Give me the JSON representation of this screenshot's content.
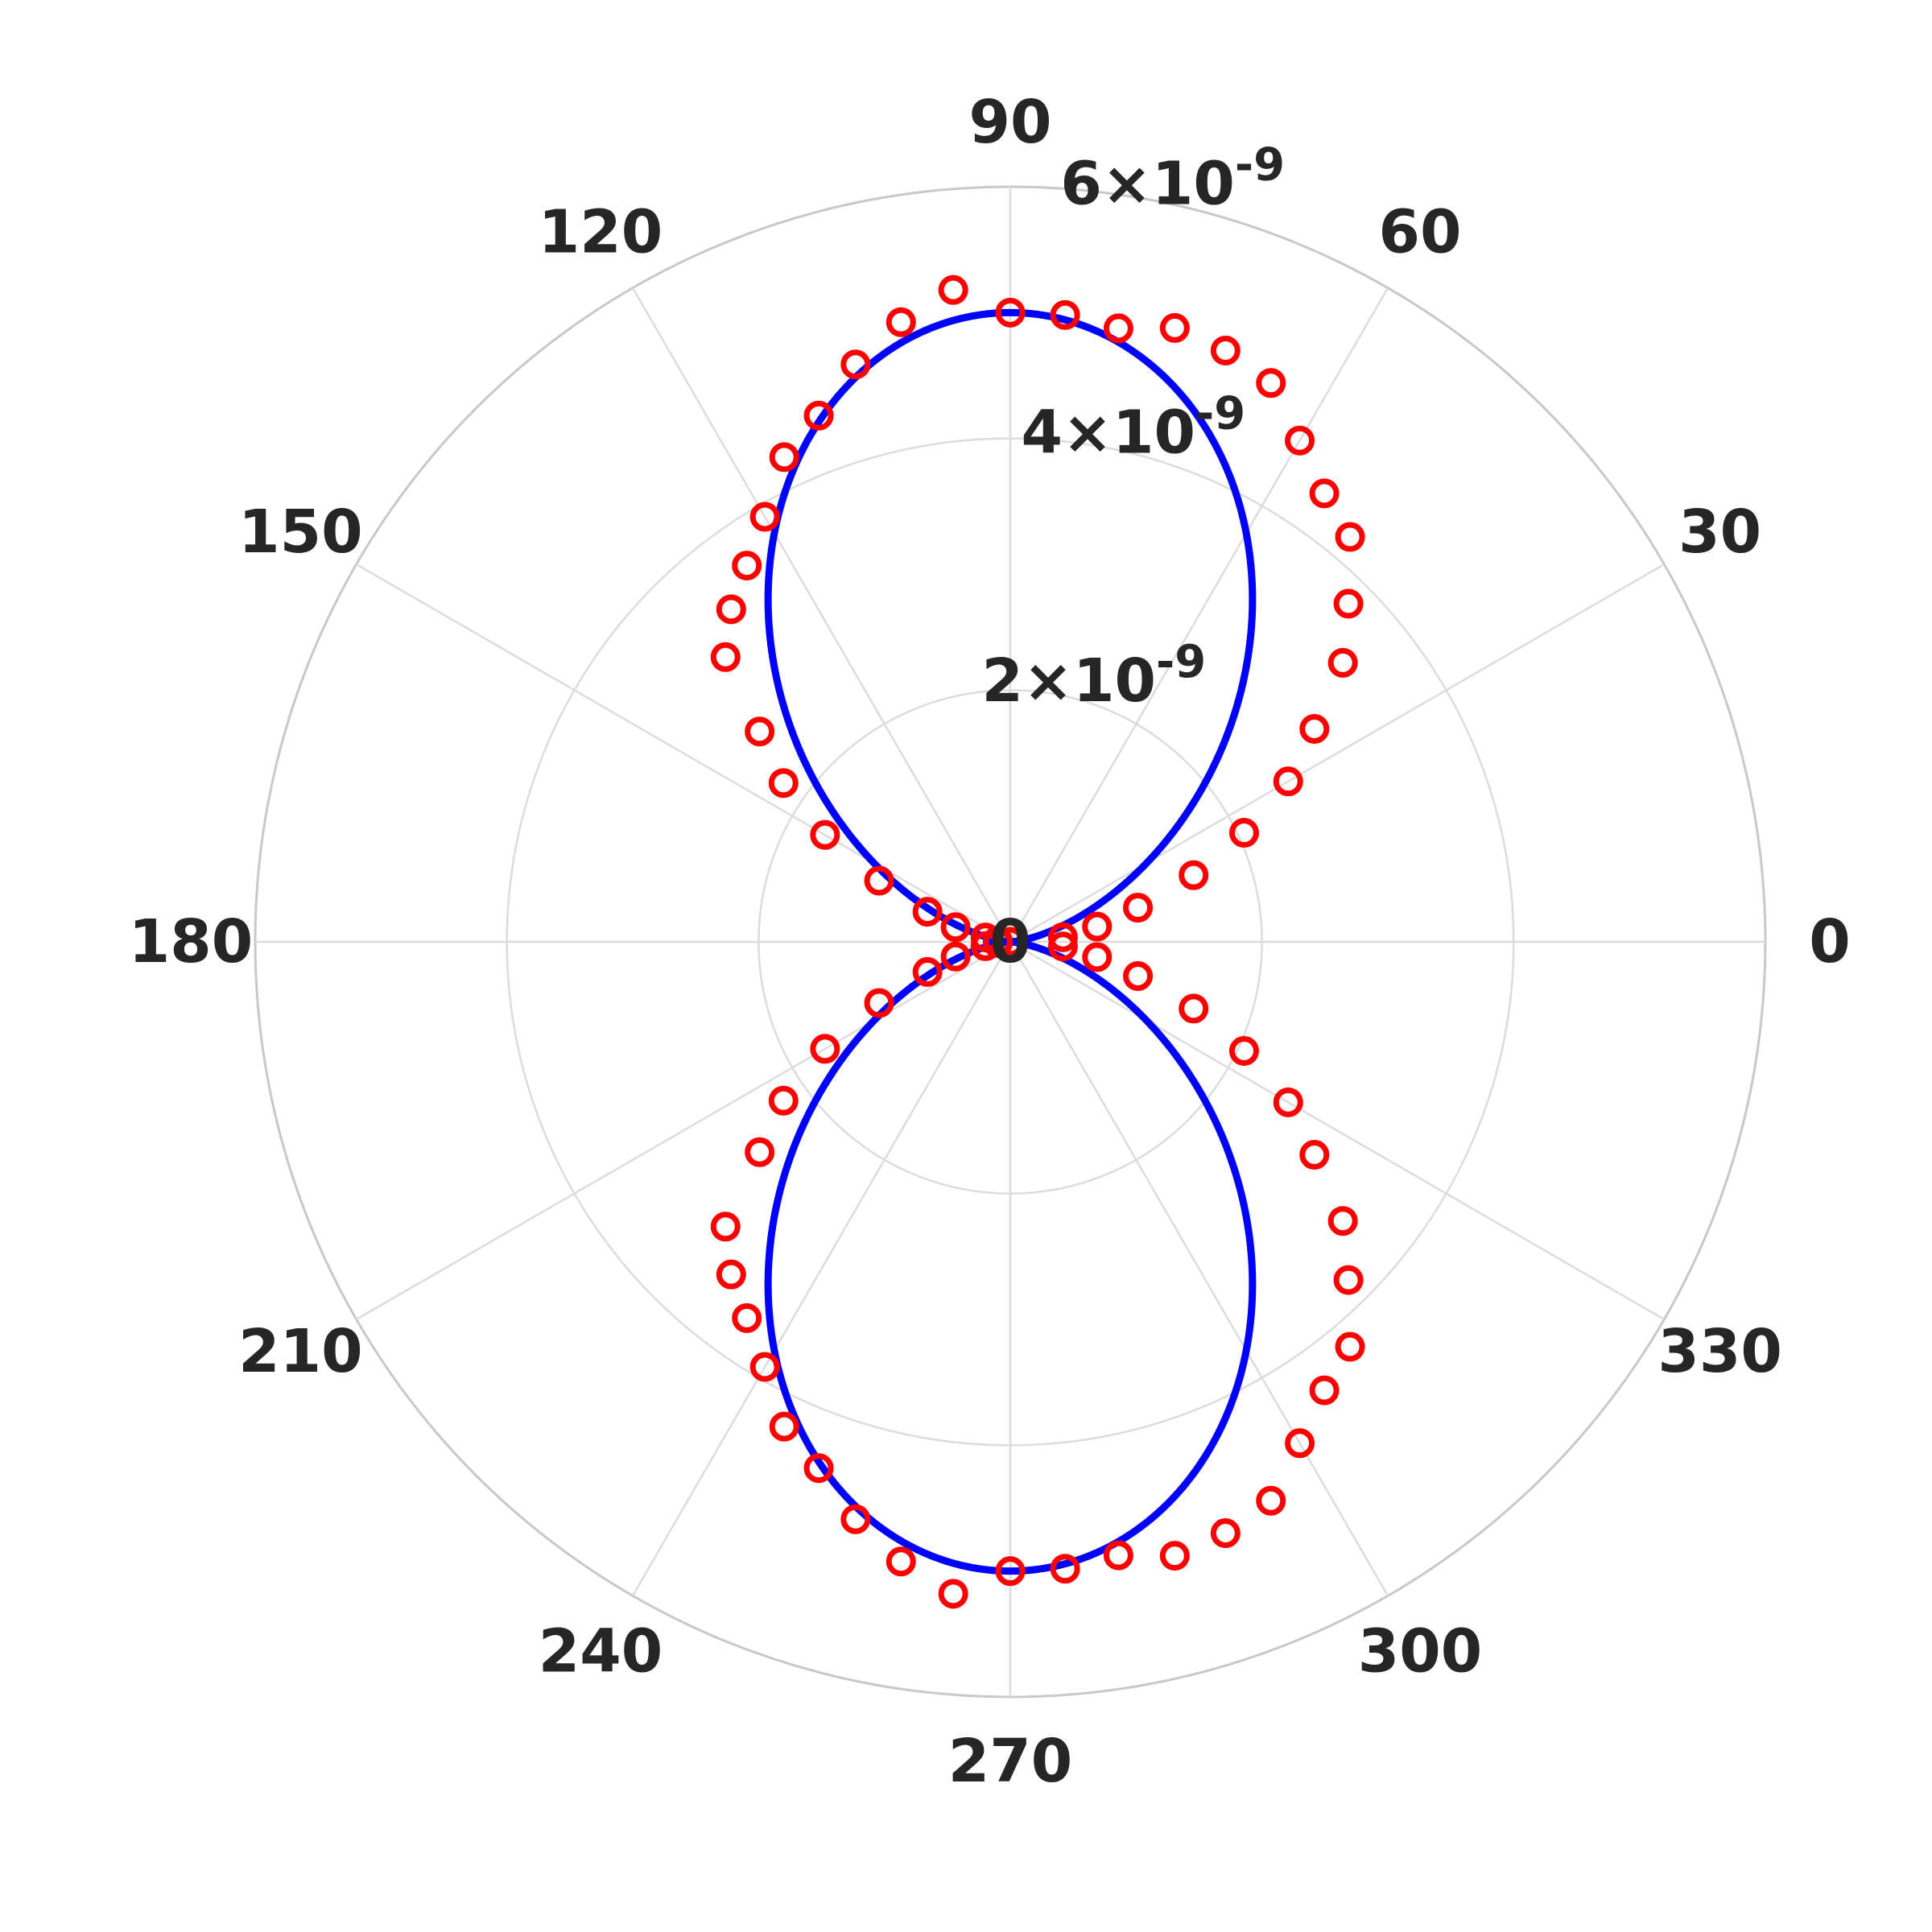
{
  "chart_data": {
    "type": "polar",
    "angular_ticks": [
      "0",
      "30",
      "60",
      "90",
      "120",
      "150",
      "180",
      "210",
      "240",
      "270",
      "300",
      "330"
    ],
    "radial_ticks": [
      {
        "value": 2e-09,
        "mantissa": "2",
        "exponent": "-9"
      },
      {
        "value": 4e-09,
        "mantissa": "4",
        "exponent": "-9"
      },
      {
        "value": 6e-09,
        "mantissa": "6",
        "exponent": "-9"
      }
    ],
    "rlim": [
      0,
      6e-09
    ],
    "grid": true,
    "series": [
      {
        "kind": "fit-curve",
        "color": "#0000ff",
        "function": "r = 5e-9 * sin(theta)^2",
        "amplitude": 5e-09
      },
      {
        "kind": "measured-points",
        "color": "#ff0000",
        "marker": "open-circle",
        "theta_deg": [
          0,
          5,
          10,
          15,
          20,
          25,
          30,
          35,
          40,
          45,
          50,
          55,
          60,
          65,
          70,
          75,
          80,
          85,
          90,
          95,
          100,
          105,
          110,
          115,
          120,
          125,
          130,
          135,
          140,
          145,
          150,
          155,
          160,
          165,
          170,
          175,
          180,
          185,
          190,
          195,
          200,
          205,
          210,
          215,
          220,
          225,
          230,
          235,
          240,
          245,
          250,
          255,
          260,
          265,
          270,
          275,
          280,
          285,
          290,
          295,
          300,
          305,
          310,
          315,
          320,
          325,
          330,
          335,
          340,
          345,
          350,
          355
        ],
        "r": [
          0.0,
          4.2e-10,
          7e-10,
          1.05e-09,
          1.55e-09,
          2.05e-09,
          2.55e-09,
          2.95e-09,
          3.45e-09,
          3.8e-09,
          4.2e-09,
          4.35e-09,
          4.6e-09,
          4.9e-09,
          5e-09,
          5.05e-09,
          4.95e-09,
          5e-09,
          5e-09,
          5.2e-09,
          5e-09,
          4.75e-09,
          4.45e-09,
          4.25e-09,
          3.9e-09,
          3.65e-09,
          3.45e-09,
          3.2e-09,
          2.6e-09,
          2.2e-09,
          1.7e-09,
          1.15e-09,
          7e-10,
          4.5e-10,
          2e-10,
          1e-10,
          0.0,
          1e-10,
          2e-10,
          4.5e-10,
          7e-10,
          1.15e-09,
          1.7e-09,
          2.2e-09,
          2.6e-09,
          3.2e-09,
          3.45e-09,
          3.65e-09,
          3.9e-09,
          4.25e-09,
          4.45e-09,
          4.75e-09,
          5e-09,
          5.2e-09,
          5e-09,
          5e-09,
          4.95e-09,
          5.05e-09,
          5e-09,
          4.9e-09,
          4.6e-09,
          4.35e-09,
          4.2e-09,
          3.8e-09,
          3.45e-09,
          2.95e-09,
          2.55e-09,
          2.05e-09,
          1.55e-09,
          1.05e-09,
          7e-10,
          4.2e-10
        ]
      }
    ]
  }
}
